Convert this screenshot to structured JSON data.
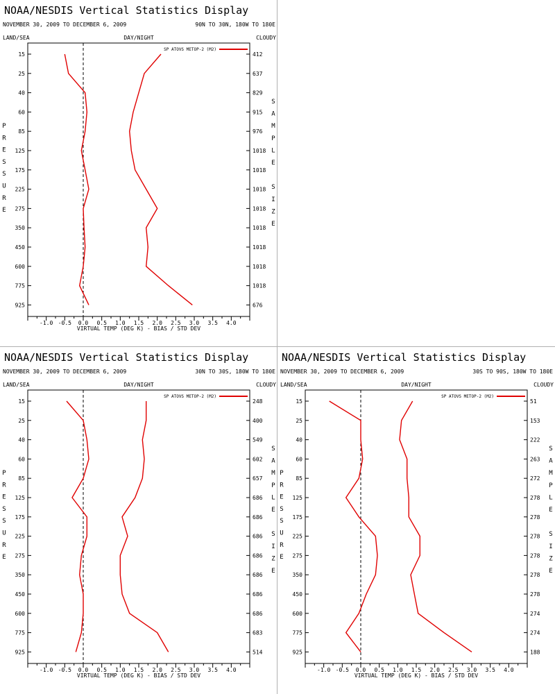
{
  "chart_data": [
    {
      "type": "line",
      "title": "NOAA/NESDIS Vertical Statistics Display",
      "date_range": "NOVEMBER 30, 2009 TO DECEMBER 6, 2009",
      "region": "90N TO 30N, 180W TO 180E",
      "land_sea": "LAND/SEA",
      "day_night": "DAY/NIGHT",
      "cloudy": "CLOUDY",
      "xlabel": "VIRTUAL TEMP (DEG K) - BIAS / STD DEV",
      "ylabel": "PRESSURE",
      "y2label": "SAMPLE SIZE",
      "legend": "SP ATOVS METOP-2 (M2)",
      "color": "#e00000",
      "xlim": [
        -1.5,
        4.5
      ],
      "x_ticks": [
        "-1.0",
        "-0.5",
        "0.0",
        "0.5",
        "1.0",
        "1.5",
        "2.0",
        "2.5",
        "3.0",
        "3.5",
        "4.0"
      ],
      "pressure_levels": [
        "15",
        "25",
        "40",
        "60",
        "85",
        "125",
        "175",
        "225",
        "275",
        "350",
        "450",
        "600",
        "775",
        "925"
      ],
      "sample_size": [
        "412",
        "637",
        "829",
        "915",
        "976",
        "1018",
        "1018",
        "1018",
        "1018",
        "1018",
        "1018",
        "1018",
        "1018",
        "676"
      ],
      "bias": [
        -0.5,
        -0.4,
        0.05,
        0.1,
        0.05,
        -0.05,
        0.05,
        0.15,
        0.0,
        0.02,
        0.05,
        0.0,
        -0.1,
        0.15
      ],
      "std_dev": [
        2.1,
        1.65,
        1.5,
        1.35,
        1.25,
        1.3,
        1.4,
        1.7,
        2.0,
        1.7,
        1.75,
        1.7,
        2.3,
        2.95
      ]
    },
    {
      "type": "line",
      "title": "NOAA/NESDIS Vertical Statistics Display",
      "date_range": "NOVEMBER 30, 2009 TO DECEMBER 6, 2009",
      "region": "30N TO 30S, 180W TO 180E",
      "land_sea": "LAND/SEA",
      "day_night": "DAY/NIGHT",
      "cloudy": "CLOUDY",
      "xlabel": "VIRTUAL TEMP (DEG K) - BIAS / STD DEV",
      "ylabel": "PRESSURE",
      "y2label": "SAMPLE SIZE",
      "legend": "SP ATOVS METOP-2 (M2)",
      "color": "#e00000",
      "xlim": [
        -1.5,
        4.5
      ],
      "x_ticks": [
        "-1.0",
        "-0.5",
        "0.0",
        "0.5",
        "1.0",
        "1.5",
        "2.0",
        "2.5",
        "3.0",
        "3.5",
        "4.0"
      ],
      "pressure_levels": [
        "15",
        "25",
        "40",
        "60",
        "85",
        "125",
        "175",
        "225",
        "275",
        "350",
        "450",
        "600",
        "775",
        "925"
      ],
      "sample_size": [
        "248",
        "400",
        "549",
        "602",
        "657",
        "686",
        "686",
        "686",
        "686",
        "686",
        "686",
        "686",
        "683",
        "514"
      ],
      "bias": [
        -0.45,
        0.0,
        0.1,
        0.15,
        0.0,
        -0.3,
        0.1,
        0.1,
        -0.05,
        -0.1,
        0.0,
        0.0,
        -0.05,
        -0.2
      ],
      "std_dev": [
        1.7,
        1.7,
        1.6,
        1.65,
        1.6,
        1.4,
        1.05,
        1.2,
        1.0,
        1.0,
        1.05,
        1.25,
        2.0,
        2.3
      ]
    },
    {
      "type": "line",
      "title": "NOAA/NESDIS Vertical Statistics Display",
      "date_range": "NOVEMBER 30, 2009 TO DECEMBER 6, 2009",
      "region": "30S TO 90S, 180W TO 180E",
      "land_sea": "LAND/SEA",
      "day_night": "DAY/NIGHT",
      "cloudy": "CLOUDY",
      "xlabel": "VIRTUAL TEMP (DEG K) - BIAS / STD DEV",
      "ylabel": "PRESSURE",
      "y2label": "SAMPLE SIZE",
      "legend": "SP ATOVS METOP-2 (M2)",
      "color": "#e00000",
      "xlim": [
        -1.5,
        4.5
      ],
      "x_ticks": [
        "-1.0",
        "-0.5",
        "0.0",
        "0.5",
        "1.0",
        "1.5",
        "2.0",
        "2.5",
        "3.0",
        "3.5",
        "4.0"
      ],
      "pressure_levels": [
        "15",
        "25",
        "40",
        "60",
        "85",
        "125",
        "175",
        "225",
        "275",
        "350",
        "450",
        "600",
        "775",
        "925"
      ],
      "sample_size": [
        "51",
        "153",
        "222",
        "263",
        "272",
        "278",
        "278",
        "278",
        "278",
        "278",
        "278",
        "274",
        "274",
        "188"
      ],
      "bias": [
        -0.85,
        0.0,
        0.0,
        0.05,
        -0.05,
        -0.4,
        -0.05,
        0.4,
        0.45,
        0.4,
        0.15,
        -0.05,
        -0.4,
        0.0
      ],
      "std_dev": [
        1.4,
        1.1,
        1.05,
        1.25,
        1.25,
        1.3,
        1.3,
        1.6,
        1.6,
        1.35,
        1.45,
        1.55,
        2.25,
        3.0
      ]
    }
  ]
}
